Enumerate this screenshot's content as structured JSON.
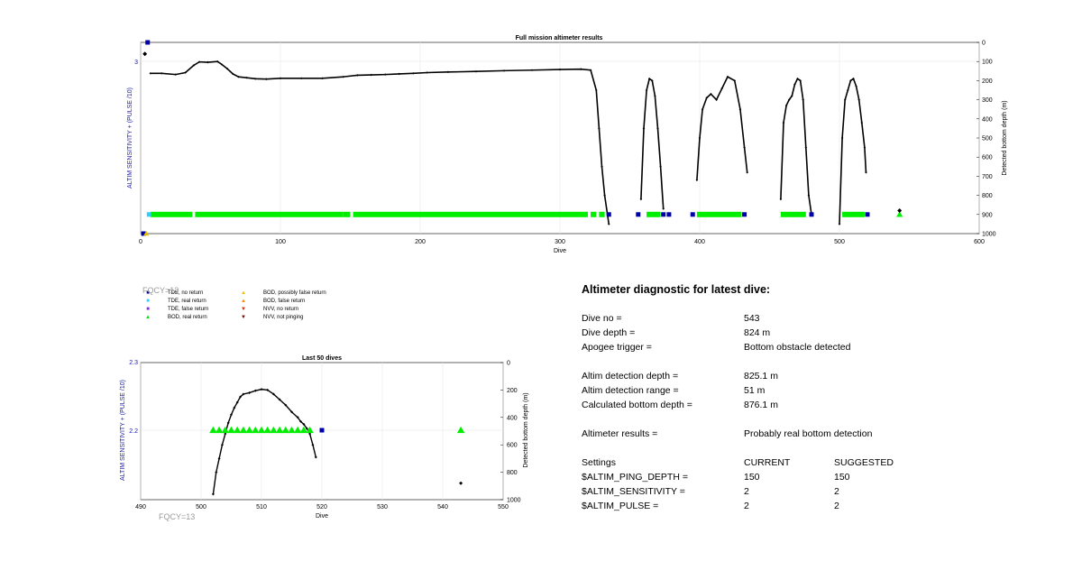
{
  "chart_data": [
    {
      "type": "line",
      "title": "Full mission altimeter results",
      "xlabel": "Dive",
      "ylabel_left": "ALTIM SENSITIVITY + (PULSE /10)",
      "ylabel_right": "Detected bottom depth (m)",
      "xlim": [
        0,
        600
      ],
      "xticks": [
        "0",
        "100",
        "200",
        "300",
        "400",
        "500",
        "600"
      ],
      "yticks_left": [
        "3"
      ],
      "yticks_right": [
        "0",
        "100",
        "200",
        "300",
        "400",
        "500",
        "600",
        "700",
        "800",
        "900",
        "1000"
      ],
      "ylim_right": [
        0,
        1000
      ],
      "grid": true,
      "series": [
        {
          "name": "Detected bottom depth",
          "color": "#000000",
          "segments": [
            {
              "x": [
                7,
                15,
                25,
                32,
                38,
                42,
                48,
                55,
                58,
                62,
                66,
                70,
                76,
                82,
                90,
                100,
                115,
                130,
                145,
                155,
                165,
                175,
                185,
                195,
                205,
                220,
                240,
                260,
                280,
                300,
                315,
                322,
                326,
                328,
                330,
                332,
                334,
                335
              ],
              "y": [
                162,
                162,
                168,
                158,
                120,
                102,
                104,
                100,
                115,
                138,
                165,
                180,
                185,
                190,
                192,
                188,
                188,
                188,
                180,
                172,
                170,
                168,
                165,
                162,
                158,
                155,
                152,
                148,
                145,
                142,
                140,
                145,
                250,
                450,
                650,
                800,
                900,
                950
              ]
            },
            {
              "x": [
                358,
                360,
                362,
                364,
                366,
                368,
                370,
                372,
                374
              ],
              "y": [
                820,
                450,
                250,
                190,
                200,
                280,
                450,
                650,
                870
              ]
            },
            {
              "x": [
                398,
                400,
                402,
                405,
                408,
                412,
                416,
                420,
                425,
                429,
                432,
                434
              ],
              "y": [
                720,
                500,
                350,
                290,
                270,
                300,
                240,
                180,
                200,
                350,
                550,
                680
              ]
            },
            {
              "x": [
                458,
                460,
                462,
                464,
                466,
                468,
                470,
                472,
                474,
                476,
                478,
                480
              ],
              "y": [
                820,
                420,
                330,
                300,
                280,
                220,
                190,
                200,
                300,
                550,
                800,
                900
              ]
            },
            {
              "x": [
                500,
                502,
                504,
                506,
                508,
                510,
                512,
                514,
                516,
                518,
                519
              ],
              "y": [
                950,
                500,
                300,
                250,
                200,
                190,
                230,
                300,
                420,
                550,
                680
              ]
            }
          ]
        },
        {
          "name": "BOD, real return",
          "color": "#00ee00",
          "marker": "triangle",
          "ranges": [
            [
              7,
              37
            ],
            [
              39,
              145
            ],
            [
              145,
              150
            ],
            [
              152,
              320
            ],
            [
              322,
              326
            ],
            [
              328,
              332
            ],
            [
              362,
              372
            ],
            [
              398,
              430
            ],
            [
              458,
              476
            ],
            [
              502,
              518
            ]
          ],
          "points": [
            [
              543,
              900
            ]
          ]
        },
        {
          "name": "TDE, no return",
          "color": "#0000aa",
          "marker": "square",
          "points": [
            [
              335,
              900
            ],
            [
              356,
              900
            ],
            [
              374,
              900
            ],
            [
              378,
              900
            ],
            [
              395,
              900
            ],
            [
              432,
              900
            ],
            [
              480,
              900
            ],
            [
              520,
              900
            ],
            [
              2,
              1000
            ],
            [
              5,
              0
            ]
          ]
        },
        {
          "name": "TDE, real return",
          "color": "#33ccff",
          "marker": "square",
          "points": [
            [
              6,
              900
            ]
          ]
        },
        {
          "name": "BOD, possibly false return",
          "color": "#e6c000",
          "marker": "triangle",
          "points": [
            [
              4,
              1000
            ]
          ]
        },
        {
          "name": "NVV, not pinging",
          "color": "#000000",
          "marker": "diamond",
          "points": [
            [
              3,
              60
            ],
            [
              543,
              880
            ]
          ]
        }
      ]
    },
    {
      "type": "line",
      "title": "Last 50 dives",
      "xlabel": "Dive",
      "ylabel_left": "ALTIM SENSITIVITY + (PULSE /10)",
      "ylabel_right": "Detected bottom depth (m)",
      "xlim": [
        490,
        550
      ],
      "xticks": [
        "490",
        "500",
        "510",
        "520",
        "530",
        "540",
        "550"
      ],
      "yticks_left": [
        "2.3",
        "2.2"
      ],
      "yticks_right": [
        "0",
        "200",
        "400",
        "600",
        "800",
        "1000"
      ],
      "ylim_right": [
        0,
        1000
      ],
      "grid": true,
      "series": [
        {
          "name": "Detected bottom depth",
          "color": "#000000",
          "x": [
            502,
            502.5,
            503,
            503.5,
            504,
            504.5,
            505,
            505.5,
            506,
            506.5,
            507,
            508,
            509,
            510,
            511,
            512,
            513,
            514,
            515,
            516,
            516.5,
            517,
            517.5,
            518,
            518.5,
            519
          ],
          "y": [
            960,
            800,
            700,
            600,
            520,
            440,
            380,
            330,
            290,
            250,
            230,
            220,
            205,
            195,
            200,
            230,
            270,
            310,
            360,
            400,
            430,
            450,
            480,
            520,
            600,
            690
          ]
        },
        {
          "name": "BOD, real return",
          "color": "#00ee00",
          "marker": "triangle",
          "x": [
            502,
            503,
            504,
            505,
            506,
            507,
            508,
            509,
            510,
            511,
            512,
            513,
            514,
            515,
            516,
            517,
            518,
            543
          ],
          "y": [
            2.2,
            2.2,
            2.2,
            2.2,
            2.2,
            2.2,
            2.2,
            2.2,
            2.2,
            2.2,
            2.2,
            2.2,
            2.2,
            2.2,
            2.2,
            2.2,
            2.2,
            2.2
          ]
        },
        {
          "name": "TDE, no return",
          "color": "#0000aa",
          "marker": "square",
          "x": [
            520
          ],
          "y": [
            2.2
          ]
        },
        {
          "name": "NVV, not pinging",
          "color": "#000000",
          "marker": "diamond",
          "x": [
            543
          ],
          "y_depth": [
            880
          ]
        }
      ]
    }
  ],
  "legend": [
    {
      "label": "TDE, no return",
      "color": "#0000aa",
      "marker": "square"
    },
    {
      "label": "TDE, real return",
      "color": "#33ccff",
      "marker": "square"
    },
    {
      "label": "TDE, false return",
      "color": "#8a2be2",
      "marker": "square"
    },
    {
      "label": "BOD, real return",
      "color": "#00dd00",
      "marker": "triangle"
    },
    {
      "label": "BOD, possibly false return",
      "color": "#f0c000",
      "marker": "triangle"
    },
    {
      "label": "BOD, false return",
      "color": "#ff8800",
      "marker": "triangle"
    },
    {
      "label": "NVV, no return",
      "color": "#dd2200",
      "marker": "triangle-down"
    },
    {
      "label": "NVV, not pinging",
      "color": "#770000",
      "marker": "triangle-down"
    }
  ],
  "watermark": "FQCY=13",
  "diagnostic": {
    "title": "Altimeter diagnostic for latest dive:",
    "dive_no_label": "Dive no =",
    "dive_no": "543",
    "dive_depth_label": "Dive depth =",
    "dive_depth": "824 m",
    "apogee_label": "Apogee trigger =",
    "apogee": "Bottom obstacle detected",
    "detect_depth_label": "Altim detection depth =",
    "detect_depth": "825.1 m",
    "detect_range_label": "Altim detection range =",
    "detect_range": "51 m",
    "calc_depth_label": "Calculated bottom depth =",
    "calc_depth": "876.1 m",
    "results_label": "Altimeter results =",
    "results": "Probably real bottom detection",
    "settings_label": "Settings",
    "current_label": "CURRENT",
    "suggested_label": "SUGGESTED",
    "ping_label": "$ALTIM_PING_DEPTH =",
    "ping_current": "150",
    "ping_suggested": "150",
    "sens_label": "$ALTIM_SENSITIVITY =",
    "sens_current": "2",
    "sens_suggested": "2",
    "pulse_label": "$ALTIM_PULSE =",
    "pulse_current": "2",
    "pulse_suggested": "2"
  }
}
